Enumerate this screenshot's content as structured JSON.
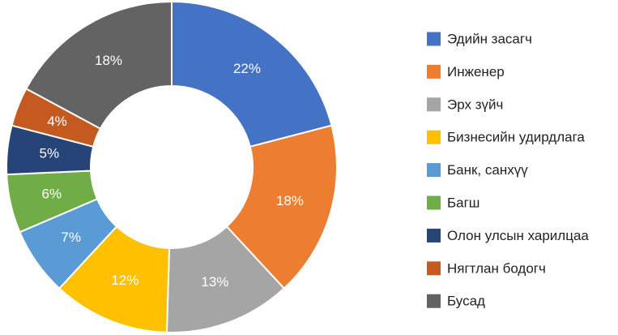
{
  "chart_data": {
    "type": "donut",
    "categories": [
      "Эдийн засагч",
      "Инженер",
      "Эрх зүйч",
      "Бизнесийн удирдлага",
      "Банк, санхүү",
      "Багш",
      "Олон улсын харилцаа",
      "Нягтлан бодогч",
      "Бусад"
    ],
    "values": [
      22,
      18,
      13,
      12,
      7,
      6,
      5,
      4,
      18
    ],
    "value_labels": [
      "22%",
      "18%",
      "13%",
      "12%",
      "7%",
      "6%",
      "5%",
      "4%",
      "18%"
    ],
    "colors": [
      "#4472c4",
      "#ed7d31",
      "#a5a5a5",
      "#ffc000",
      "#5b9bd5",
      "#70ad47",
      "#264478",
      "#c55a21",
      "#636363"
    ],
    "legend": "right"
  }
}
